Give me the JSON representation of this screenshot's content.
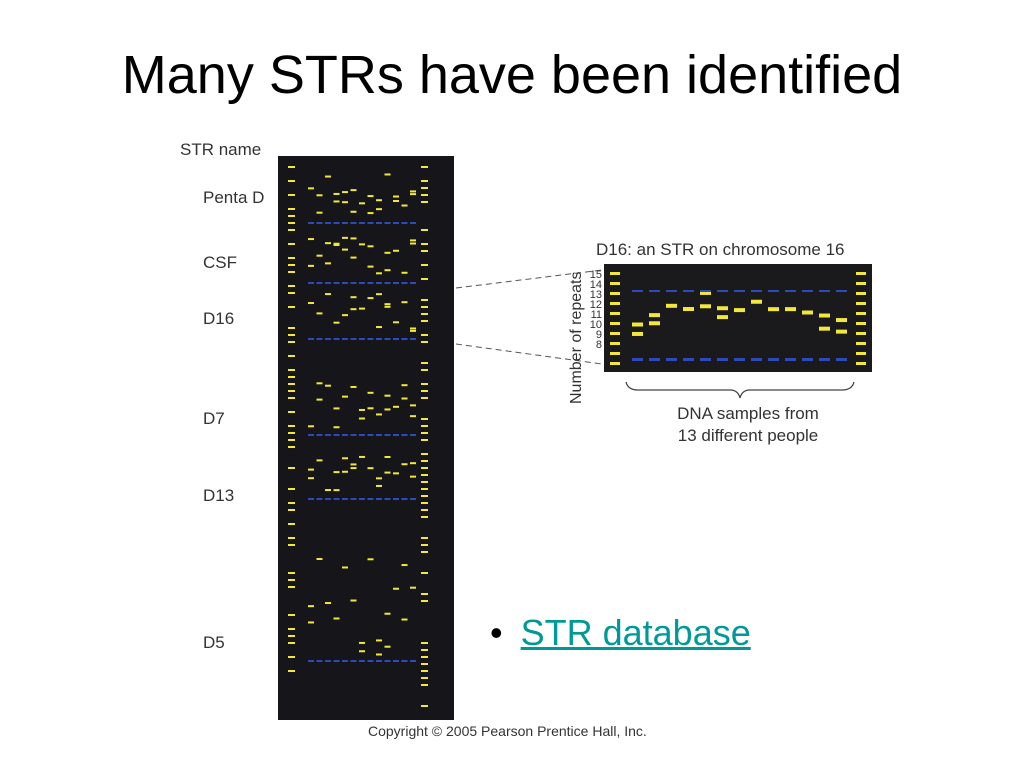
{
  "slide": {
    "title": "Many STRs have been identified",
    "copyright": "Copyright © 2005 Pearson Prentice Hall, Inc."
  },
  "gel": {
    "header": "STR name",
    "str_names": [
      "Penta D",
      "CSF",
      "D16",
      "D7",
      "D13",
      "D5"
    ]
  },
  "zoom": {
    "title": "D16: an STR on chromosome 16",
    "y_axis_label": "Number of repeats",
    "repeat_ticks": [
      "15",
      "14",
      "13",
      "12",
      "11",
      "10",
      "9",
      "8"
    ],
    "caption_line1": "DNA samples from",
    "caption_line2": "13 different people"
  },
  "bullets": [
    {
      "text": "STR database"
    }
  ],
  "colors": {
    "band_yellow": "#f2e83a",
    "band_blue": "#2c4bb8",
    "gel_background": "#16161a",
    "link": "#009999"
  }
}
